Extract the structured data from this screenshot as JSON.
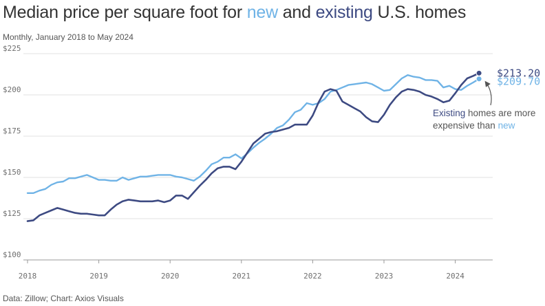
{
  "title": {
    "before": "Median price per square foot for ",
    "new_word": "new",
    "middle": " and ",
    "existing_word": "existing",
    "after": " U.S. homes"
  },
  "subtitle": "Monthly, January 2018 to May 2024",
  "source": "Data: Zillow; Chart: Axios Visuals",
  "colors": {
    "new": "#6fb3e6",
    "existing": "#3d4a82",
    "grid": "#e2e2e2",
    "axis": "#999999"
  },
  "chart_data": {
    "type": "line",
    "title": "Median price per square foot for new and existing U.S. homes",
    "subtitle": "Monthly, January 2018 to May 2024",
    "ylim": [
      100,
      225
    ],
    "y_ticks": [
      100,
      125,
      150,
      175,
      200,
      225
    ],
    "y_tick_labels": [
      "$100",
      "$125",
      "$150",
      "$175",
      "$200",
      "$225"
    ],
    "x_ticks": [
      "2018",
      "2019",
      "2020",
      "2021",
      "2022",
      "2023",
      "2024"
    ],
    "x_start": "2018-01",
    "x_end": "2024-05",
    "grid": true,
    "series": [
      {
        "name": "new",
        "color": "#6fb3e6",
        "values": [
          140.5,
          140.5,
          142.0,
          143.0,
          145.5,
          147.0,
          147.5,
          149.5,
          149.5,
          150.5,
          151.5,
          150.0,
          148.5,
          148.5,
          148.0,
          148.0,
          150.0,
          148.5,
          149.5,
          150.5,
          150.5,
          151.0,
          151.5,
          151.5,
          151.5,
          150.5,
          150.0,
          149.0,
          148.0,
          150.5,
          154.0,
          158.0,
          159.5,
          162.0,
          162.0,
          164.0,
          161.5,
          164.5,
          168.0,
          171.0,
          173.5,
          176.5,
          180.0,
          181.5,
          185.0,
          189.5,
          191.0,
          195.0,
          194.0,
          195.0,
          197.5,
          202.0,
          203.0,
          204.5,
          206.0,
          206.5,
          207.0,
          207.5,
          206.5,
          204.5,
          202.5,
          203.0,
          206.5,
          210.0,
          212.0,
          211.0,
          210.5,
          209.0,
          209.0,
          208.5,
          204.5,
          205.5,
          203.5,
          203.0,
          205.5,
          207.5,
          209.7
        ]
      },
      {
        "name": "existing",
        "color": "#3d4a82",
        "values": [
          123.5,
          124.0,
          127.0,
          128.5,
          130.0,
          131.5,
          130.5,
          129.5,
          128.5,
          128.0,
          128.0,
          127.5,
          127.0,
          127.0,
          130.5,
          133.5,
          135.5,
          136.5,
          136.0,
          135.5,
          135.5,
          135.5,
          136.0,
          135.0,
          136.0,
          139.0,
          139.0,
          137.0,
          141.0,
          145.0,
          148.5,
          152.5,
          155.5,
          156.5,
          156.5,
          155.0,
          159.5,
          165.0,
          170.5,
          173.5,
          176.5,
          177.5,
          178.0,
          179.0,
          180.0,
          182.0,
          182.0,
          182.0,
          187.5,
          195.5,
          202.0,
          203.5,
          202.5,
          196.0,
          194.0,
          192.0,
          190.0,
          186.5,
          184.0,
          183.5,
          188.0,
          194.0,
          198.5,
          202.0,
          203.5,
          203.0,
          202.0,
          200.0,
          199.0,
          197.5,
          195.5,
          196.5,
          201.0,
          206.0,
          210.0,
          211.5,
          213.2
        ]
      }
    ],
    "end_labels": [
      {
        "series": "existing",
        "text": "$213.20"
      },
      {
        "series": "new",
        "text": "$209.70"
      }
    ],
    "annotation": {
      "line1_colored": "Existing",
      "line1_rest": " homes are more",
      "line2_rest": "expensive than ",
      "line2_colored": "new"
    }
  }
}
